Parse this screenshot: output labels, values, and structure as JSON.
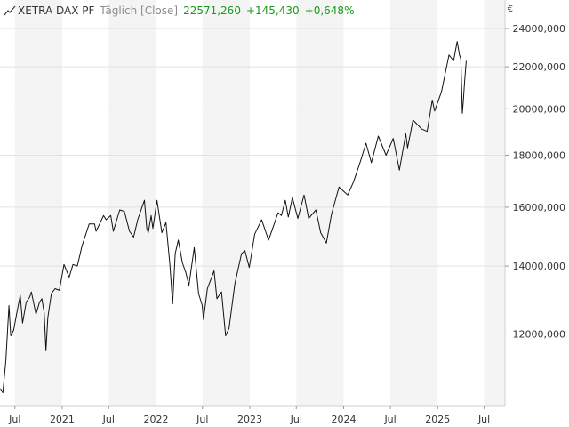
{
  "header": {
    "instrument": "XETRA DAX PF",
    "period": "Täglich [Close]",
    "last": "22571,260",
    "change": "+145,430",
    "change_pct": "+0,648%",
    "positive_color": "#1a9a1a"
  },
  "axis": {
    "currency": "€"
  },
  "chart_data": {
    "type": "line",
    "title": "",
    "xlabel": "",
    "ylabel": "",
    "ylim": [
      10200,
      25600
    ],
    "y_scale": "log",
    "grid": true,
    "y_ticks": [
      {
        "value": 12000,
        "label": "12000,000"
      },
      {
        "value": 14000,
        "label": "14000,000"
      },
      {
        "value": 16000,
        "label": "16000,000"
      },
      {
        "value": 18000,
        "label": "18000,000"
      },
      {
        "value": 20000,
        "label": "20000,000"
      },
      {
        "value": 22000,
        "label": "22000,000"
      },
      {
        "value": 24000,
        "label": "24000,000"
      }
    ],
    "xlim": [
      "2020-05-04",
      "2025-09-20"
    ],
    "x_ticks": [
      {
        "date": "2020-07-01",
        "label": "Jul"
      },
      {
        "date": "2021-01-01",
        "label": "2021"
      },
      {
        "date": "2021-07-01",
        "label": "Jul"
      },
      {
        "date": "2022-01-01",
        "label": "2022"
      },
      {
        "date": "2022-07-01",
        "label": "Jul"
      },
      {
        "date": "2023-01-01",
        "label": "2023"
      },
      {
        "date": "2023-07-01",
        "label": "Jul"
      },
      {
        "date": "2024-01-01",
        "label": "2024"
      },
      {
        "date": "2024-07-01",
        "label": "Jul"
      },
      {
        "date": "2025-01-01",
        "label": "2025"
      },
      {
        "date": "2025-07-01",
        "label": "Jul"
      }
    ],
    "series": [
      {
        "color": "#111111",
        "points": [
          [
            "2020-05-06",
            10600
          ],
          [
            "2020-05-15",
            10500
          ],
          [
            "2020-05-27",
            11300
          ],
          [
            "2020-06-08",
            12800
          ],
          [
            "2020-06-15",
            11950
          ],
          [
            "2020-06-26",
            12100
          ],
          [
            "2020-07-10",
            12650
          ],
          [
            "2020-07-22",
            13100
          ],
          [
            "2020-07-31",
            12300
          ],
          [
            "2020-08-14",
            12900
          ],
          [
            "2020-08-28",
            13050
          ],
          [
            "2020-09-03",
            13200
          ],
          [
            "2020-09-21",
            12550
          ],
          [
            "2020-10-05",
            12900
          ],
          [
            "2020-10-14",
            13000
          ],
          [
            "2020-10-23",
            12600
          ],
          [
            "2020-10-30",
            11550
          ],
          [
            "2020-11-06",
            12450
          ],
          [
            "2020-11-20",
            13150
          ],
          [
            "2020-12-04",
            13300
          ],
          [
            "2020-12-21",
            13250
          ],
          [
            "2021-01-08",
            14050
          ],
          [
            "2021-01-28",
            13650
          ],
          [
            "2021-02-12",
            14050
          ],
          [
            "2021-03-01",
            14000
          ],
          [
            "2021-03-19",
            14650
          ],
          [
            "2021-04-16",
            15400
          ],
          [
            "2021-05-07",
            15400
          ],
          [
            "2021-05-13",
            15150
          ],
          [
            "2021-06-11",
            15700
          ],
          [
            "2021-06-21",
            15550
          ],
          [
            "2021-07-09",
            15700
          ],
          [
            "2021-07-19",
            15150
          ],
          [
            "2021-08-13",
            15900
          ],
          [
            "2021-08-31",
            15850
          ],
          [
            "2021-09-20",
            15150
          ],
          [
            "2021-10-06",
            14950
          ],
          [
            "2021-10-22",
            15550
          ],
          [
            "2021-11-17",
            16250
          ],
          [
            "2021-11-26",
            15250
          ],
          [
            "2021-12-02",
            15100
          ],
          [
            "2021-12-13",
            15700
          ],
          [
            "2021-12-20",
            15250
          ],
          [
            "2022-01-05",
            16250
          ],
          [
            "2022-01-24",
            15100
          ],
          [
            "2022-02-09",
            15450
          ],
          [
            "2022-02-24",
            14050
          ],
          [
            "2022-03-07",
            12850
          ],
          [
            "2022-03-17",
            14400
          ],
          [
            "2022-03-29",
            14850
          ],
          [
            "2022-04-14",
            14100
          ],
          [
            "2022-04-27",
            13800
          ],
          [
            "2022-05-09",
            13400
          ],
          [
            "2022-05-30",
            14600
          ],
          [
            "2022-06-16",
            13150
          ],
          [
            "2022-06-30",
            12800
          ],
          [
            "2022-07-05",
            12400
          ],
          [
            "2022-07-20",
            13300
          ],
          [
            "2022-08-15",
            13850
          ],
          [
            "2022-08-26",
            13000
          ],
          [
            "2022-09-13",
            13200
          ],
          [
            "2022-09-29",
            11950
          ],
          [
            "2022-10-12",
            12150
          ],
          [
            "2022-11-04",
            13450
          ],
          [
            "2022-11-30",
            14400
          ],
          [
            "2022-12-13",
            14500
          ],
          [
            "2022-12-30",
            13950
          ],
          [
            "2023-01-20",
            15050
          ],
          [
            "2023-02-16",
            15550
          ],
          [
            "2023-03-15",
            14850
          ],
          [
            "2023-04-21",
            15800
          ],
          [
            "2023-05-04",
            15700
          ],
          [
            "2023-05-19",
            16250
          ],
          [
            "2023-05-31",
            15650
          ],
          [
            "2023-06-16",
            16350
          ],
          [
            "2023-07-07",
            15600
          ],
          [
            "2023-07-31",
            16450
          ],
          [
            "2023-08-18",
            15600
          ],
          [
            "2023-09-15",
            15900
          ],
          [
            "2023-10-04",
            15100
          ],
          [
            "2023-10-26",
            14750
          ],
          [
            "2023-11-15",
            15750
          ],
          [
            "2023-12-14",
            16750
          ],
          [
            "2024-01-17",
            16450
          ],
          [
            "2024-02-09",
            16950
          ],
          [
            "2024-03-08",
            17800
          ],
          [
            "2024-03-28",
            18500
          ],
          [
            "2024-04-18",
            17700
          ],
          [
            "2024-05-15",
            18800
          ],
          [
            "2024-06-14",
            18000
          ],
          [
            "2024-07-12",
            18700
          ],
          [
            "2024-08-05",
            17400
          ],
          [
            "2024-08-30",
            18900
          ],
          [
            "2024-09-06",
            18300
          ],
          [
            "2024-09-27",
            19500
          ],
          [
            "2024-10-31",
            19100
          ],
          [
            "2024-11-21",
            19000
          ],
          [
            "2024-12-11",
            20400
          ],
          [
            "2024-12-20",
            19900
          ],
          [
            "2025-01-16",
            20800
          ],
          [
            "2025-02-14",
            22600
          ],
          [
            "2025-03-04",
            22300
          ],
          [
            "2025-03-18",
            23300
          ],
          [
            "2025-03-27",
            22600
          ],
          [
            "2025-04-01",
            22400
          ],
          [
            "2025-04-07",
            19800
          ],
          [
            "2025-04-11",
            20400
          ],
          [
            "2025-04-16",
            21300
          ],
          [
            "2025-04-22",
            22300
          ]
        ]
      }
    ]
  }
}
